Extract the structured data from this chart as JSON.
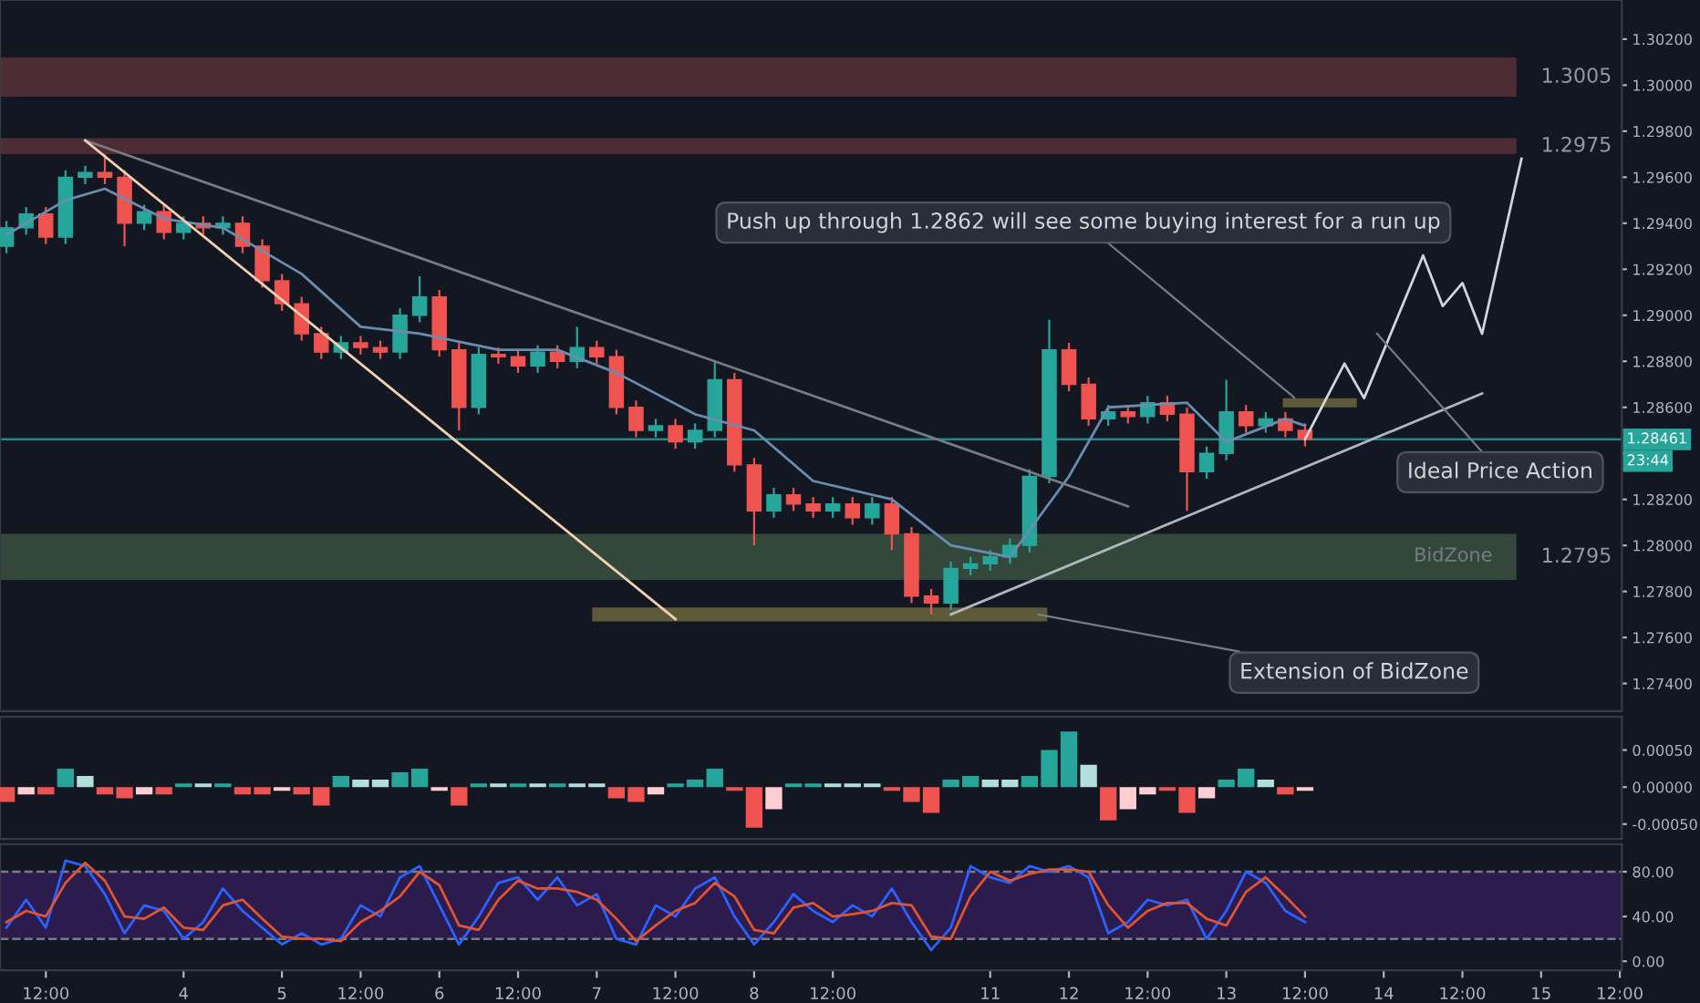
{
  "chart_data": [
    {
      "type": "candlestick",
      "categories": [
        null,
        null,
        null,
        null,
        null,
        null,
        null,
        null,
        null,
        null,
        null,
        null,
        null,
        null,
        null,
        null,
        null,
        null,
        null,
        null,
        null,
        null,
        null,
        null,
        null,
        null,
        null,
        null,
        null,
        null,
        null,
        null,
        null,
        null,
        null,
        null,
        null,
        null,
        null,
        null,
        null,
        null,
        null,
        null,
        null,
        null,
        null,
        null,
        null,
        null,
        null,
        null,
        null,
        null,
        null,
        null,
        null,
        null,
        null,
        null,
        null,
        null,
        null,
        null,
        null,
        null,
        null,
        null,
        null,
        null,
        null,
        null,
        null,
        null,
        null,
        null,
        null,
        null,
        null,
        null,
        null,
        null,
        null
      ],
      "ohlc": [
        [
          1.293,
          1.2941,
          1.2927,
          1.2938
        ],
        [
          1.2938,
          1.2947,
          1.2935,
          1.2944
        ],
        [
          1.2944,
          1.2947,
          1.2931,
          1.2934
        ],
        [
          1.2934,
          1.2963,
          1.2931,
          1.296
        ],
        [
          1.296,
          1.2965,
          1.2957,
          1.2962
        ],
        [
          1.2962,
          1.297,
          1.2957,
          1.296
        ],
        [
          1.296,
          1.2963,
          1.293,
          1.294
        ],
        [
          1.294,
          1.2948,
          1.2937,
          1.2945
        ],
        [
          1.2945,
          1.2948,
          1.2933,
          1.2936
        ],
        [
          1.2936,
          1.2943,
          1.2933,
          1.294
        ],
        [
          1.294,
          1.2943,
          1.2935,
          1.2938
        ],
        [
          1.2938,
          1.2943,
          1.2935,
          1.294
        ],
        [
          1.294,
          1.2943,
          1.2927,
          1.293
        ],
        [
          1.293,
          1.2933,
          1.2912,
          1.2915
        ],
        [
          1.2915,
          1.2918,
          1.2902,
          1.2905
        ],
        [
          1.2905,
          1.2908,
          1.2889,
          1.2892
        ],
        [
          1.2892,
          1.2895,
          1.2881,
          1.2884
        ],
        [
          1.2884,
          1.2891,
          1.2881,
          1.2888
        ],
        [
          1.2888,
          1.2891,
          1.2883,
          1.2886
        ],
        [
          1.2886,
          1.2889,
          1.2881,
          1.2884
        ],
        [
          1.2884,
          1.2903,
          1.2881,
          1.29
        ],
        [
          1.29,
          1.2917,
          1.2897,
          1.2908
        ],
        [
          1.2908,
          1.2911,
          1.2882,
          1.2885
        ],
        [
          1.2885,
          1.2888,
          1.285,
          1.286
        ],
        [
          1.286,
          1.2886,
          1.2857,
          1.2883
        ],
        [
          1.2883,
          1.2886,
          1.2879,
          1.2882
        ],
        [
          1.2882,
          1.2885,
          1.2875,
          1.2878
        ],
        [
          1.2878,
          1.2887,
          1.2875,
          1.2884
        ],
        [
          1.2884,
          1.2887,
          1.2877,
          1.288
        ],
        [
          1.288,
          1.2895,
          1.2877,
          1.2886
        ],
        [
          1.2886,
          1.2889,
          1.2879,
          1.2882
        ],
        [
          1.2882,
          1.2885,
          1.2857,
          1.286
        ],
        [
          1.286,
          1.2863,
          1.2847,
          1.285
        ],
        [
          1.285,
          1.2855,
          1.2847,
          1.2852
        ],
        [
          1.2852,
          1.2855,
          1.2842,
          1.2845
        ],
        [
          1.2845,
          1.2853,
          1.2842,
          1.285
        ],
        [
          1.285,
          1.288,
          1.2847,
          1.2872
        ],
        [
          1.2872,
          1.2875,
          1.2832,
          1.2835
        ],
        [
          1.2835,
          1.2838,
          1.28,
          1.2815
        ],
        [
          1.2815,
          1.2825,
          1.2812,
          1.2822
        ],
        [
          1.2822,
          1.2825,
          1.2815,
          1.2818
        ],
        [
          1.2818,
          1.2821,
          1.2812,
          1.2815
        ],
        [
          1.2815,
          1.2821,
          1.2812,
          1.2818
        ],
        [
          1.2818,
          1.2821,
          1.2809,
          1.2812
        ],
        [
          1.2812,
          1.2821,
          1.2809,
          1.2818
        ],
        [
          1.2818,
          1.2821,
          1.2798,
          1.2805
        ],
        [
          1.2805,
          1.2808,
          1.2775,
          1.2778
        ],
        [
          1.2778,
          1.2781,
          1.277,
          1.2775
        ],
        [
          1.2775,
          1.2793,
          1.2772,
          1.279
        ],
        [
          1.279,
          1.2795,
          1.2787,
          1.2792
        ],
        [
          1.2792,
          1.2798,
          1.2789,
          1.2795
        ],
        [
          1.2795,
          1.2803,
          1.2792,
          1.28
        ],
        [
          1.28,
          1.2833,
          1.2797,
          1.283
        ],
        [
          1.283,
          1.2898,
          1.2827,
          1.2885
        ],
        [
          1.2885,
          1.2888,
          1.2867,
          1.287
        ],
        [
          1.287,
          1.2873,
          1.2852,
          1.2855
        ],
        [
          1.2855,
          1.2861,
          1.2852,
          1.2858
        ],
        [
          1.2858,
          1.2861,
          1.2853,
          1.2856
        ],
        [
          1.2856,
          1.2865,
          1.2853,
          1.2862
        ],
        [
          1.2862,
          1.2865,
          1.2854,
          1.2857
        ],
        [
          1.2857,
          1.286,
          1.2815,
          1.2832
        ],
        [
          1.2832,
          1.2843,
          1.2829,
          1.284
        ],
        [
          1.284,
          1.2872,
          1.2837,
          1.2858
        ],
        [
          1.2858,
          1.2861,
          1.2849,
          1.2852
        ],
        [
          1.2852,
          1.2858,
          1.2849,
          1.2855
        ],
        [
          1.2855,
          1.2858,
          1.2847,
          1.285
        ],
        [
          1.285,
          1.2853,
          1.2843,
          1.28461
        ],
        null,
        null,
        null,
        null,
        null,
        null,
        null,
        null,
        null,
        null,
        null,
        null,
        null,
        null,
        null,
        null
      ],
      "colors": [
        "#26a69a",
        "#26a69a",
        "#ef5350",
        "#26a69a",
        "#26a69a",
        "#ef5350",
        "#ef5350",
        "#26a69a",
        "#ef5350",
        "#26a69a",
        "#ef5350",
        "#26a69a",
        "#ef5350",
        "#ef5350",
        "#ef5350",
        "#ef5350",
        "#ef5350",
        "#26a69a",
        "#ef5350",
        "#ef5350",
        "#26a69a",
        "#26a69a",
        "#ef5350",
        "#ef5350",
        "#26a69a",
        "#ef5350",
        "#ef5350",
        "#26a69a",
        "#ef5350",
        "#26a69a",
        "#ef5350",
        "#ef5350",
        "#ef5350",
        "#26a69a",
        "#ef5350",
        "#26a69a",
        "#26a69a",
        "#ef5350",
        "#ef5350",
        "#26a69a",
        "#ef5350",
        "#ef5350",
        "#26a69a",
        "#ef5350",
        "#26a69a",
        "#ef5350",
        "#ef5350",
        "#ef5350",
        "#26a69a",
        "#26a69a",
        "#26a69a",
        "#26a69a",
        "#26a69a",
        "#26a69a",
        "#ef5350",
        "#ef5350",
        "#26a69a",
        "#ef5350",
        "#26a69a",
        "#ef5350",
        "#ef5350",
        "#26a69a",
        "#26a69a",
        "#ef5350",
        "#26a69a",
        "#ef5350",
        "#ef5350",
        null,
        null,
        null,
        null,
        null,
        null,
        null,
        null,
        null,
        null,
        null,
        null,
        null,
        null,
        null,
        null
      ],
      "series": [
        {
          "type": "line",
          "color": "#6a8caf",
          "values": [
            1.2935,
            null,
            null,
            1.295,
            null,
            1.2955,
            null,
            null,
            1.2942,
            null,
            null,
            1.2938,
            null,
            null,
            null,
            1.2918,
            null,
            null,
            1.2895,
            null,
            null,
            1.2892,
            null,
            null,
            null,
            1.2885,
            null,
            null,
            1.2885,
            null,
            null,
            1.2875,
            null,
            null,
            null,
            1.2857,
            null,
            null,
            1.285,
            null,
            null,
            1.2828,
            null,
            null,
            null,
            1.282,
            null,
            null,
            1.28,
            null,
            null,
            1.2795,
            null,
            null,
            1.283,
            null,
            1.286,
            null,
            null,
            null,
            1.2862,
            null,
            1.2845,
            null,
            null,
            1.2855,
            1.2852,
            null,
            null,
            null,
            null,
            null,
            null,
            null,
            null,
            null,
            null,
            null,
            null,
            null,
            null,
            null,
            null
          ]
        },
        {
          "type": "line",
          "color": "#787b86",
          "values": [
            null,
            null,
            null,
            null,
            1.2976,
            null,
            null,
            null,
            null,
            null,
            null,
            null,
            null,
            null,
            null,
            null,
            null,
            null,
            null,
            null,
            null,
            null,
            null,
            null,
            null,
            null,
            null,
            null,
            null,
            null,
            null,
            null,
            null,
            null,
            null,
            null,
            null,
            null,
            null,
            null,
            null,
            null,
            null,
            null,
            null,
            null,
            null,
            null,
            null,
            null,
            null,
            null,
            null,
            null,
            null,
            null,
            null,
            1.2817,
            null,
            null,
            null,
            null,
            null,
            null,
            null,
            null,
            null,
            null,
            null,
            null,
            null,
            null,
            null,
            null,
            null,
            null,
            null,
            null,
            null,
            null,
            null,
            null,
            null
          ]
        },
        {
          "type": "line",
          "color": "#f0d0b0",
          "values": [
            null,
            null,
            null,
            null,
            1.2976,
            null,
            null,
            null,
            null,
            null,
            null,
            null,
            null,
            null,
            null,
            null,
            null,
            null,
            null,
            null,
            null,
            null,
            null,
            null,
            null,
            null,
            null,
            null,
            null,
            null,
            null,
            null,
            null,
            null,
            1.2768,
            null,
            null,
            null,
            null,
            null,
            null,
            null,
            null,
            null,
            null,
            null,
            null,
            null,
            null,
            null,
            null,
            null,
            null,
            null,
            null,
            null,
            null,
            null,
            null,
            null,
            null,
            null,
            null,
            null,
            null,
            null,
            null,
            null,
            null,
            null,
            null,
            null,
            null,
            null,
            null,
            null,
            null,
            null,
            null,
            null,
            null,
            null,
            null
          ]
        },
        {
          "type": "line",
          "color": "#b2b5be",
          "values": [
            null,
            null,
            null,
            null,
            null,
            null,
            null,
            null,
            null,
            null,
            null,
            null,
            null,
            null,
            null,
            null,
            null,
            null,
            null,
            null,
            null,
            null,
            null,
            null,
            null,
            null,
            null,
            null,
            null,
            null,
            null,
            null,
            null,
            null,
            null,
            null,
            null,
            null,
            null,
            null,
            null,
            null,
            null,
            null,
            null,
            null,
            null,
            null,
            1.277,
            null,
            null,
            null,
            null,
            null,
            null,
            null,
            null,
            null,
            null,
            null,
            null,
            null,
            null,
            null,
            null,
            null,
            null,
            null,
            null,
            null,
            null,
            null,
            null,
            null,
            null,
            1.2866,
            null,
            null,
            null,
            null,
            null,
            null,
            null
          ]
        },
        {
          "type": "line",
          "color": "#d1d4dc",
          "values": [
            null,
            null,
            null,
            null,
            null,
            null,
            null,
            null,
            null,
            null,
            null,
            null,
            null,
            null,
            null,
            null,
            null,
            null,
            null,
            null,
            null,
            null,
            null,
            null,
            null,
            null,
            null,
            null,
            null,
            null,
            null,
            null,
            null,
            null,
            null,
            null,
            null,
            null,
            null,
            null,
            null,
            null,
            null,
            null,
            null,
            null,
            null,
            null,
            null,
            null,
            null,
            null,
            null,
            null,
            null,
            null,
            null,
            null,
            null,
            null,
            null,
            null,
            null,
            null,
            null,
            null,
            1.28461,
            null,
            1.2879,
            1.2864,
            null,
            null,
            1.2926,
            1.2904,
            1.2914,
            1.2892,
            null,
            1.2968,
            null,
            null,
            null,
            null,
            null
          ]
        }
      ],
      "bands": [
        {
          "axis": "y",
          "from": 1.2995,
          "to": 1.3012,
          "label": "1.3005",
          "color": "#4e2c34"
        },
        {
          "axis": "y",
          "from": 1.297,
          "to": 1.2977,
          "label": "1.2975",
          "color": "#4e2c34"
        },
        {
          "axis": "y",
          "from": 1.2785,
          "to": 1.2805,
          "label": "1.2795",
          "color": "#33483b"
        }
      ],
      "ref_lines": [
        {
          "axis": "y",
          "value": 1.28461,
          "label": "1.28461",
          "color": "#1e8a8a"
        }
      ],
      "annotations": [
        "Push up through 1.2862 will see some buying interest for a run up",
        "Ideal Price Action",
        "Extension of BidZone",
        "BidZone",
        "23:44"
      ],
      "ylim": [
        1.2728,
        1.3037
      ],
      "yticks": [
        {
          "value": 1.274,
          "label": "1.27400"
        },
        {
          "value": 1.276,
          "label": "1.27600"
        },
        {
          "value": 1.278,
          "label": "1.27800"
        },
        {
          "value": 1.28,
          "label": "1.28000"
        },
        {
          "value": 1.282,
          "label": "1.28200"
        },
        {
          "value": 1.284,
          "label": null
        },
        {
          "value": 1.286,
          "label": "1.28600"
        },
        {
          "value": 1.288,
          "label": "1.28800"
        },
        {
          "value": 1.29,
          "label": "1.29000"
        },
        {
          "value": 1.292,
          "label": "1.29200"
        },
        {
          "value": 1.294,
          "label": "1.29400"
        },
        {
          "value": 1.296,
          "label": "1.29600"
        },
        {
          "value": 1.298,
          "label": "1.29800"
        },
        {
          "value": 1.3,
          "label": "1.30000"
        },
        {
          "value": 1.302,
          "label": "1.30200"
        }
      ],
      "tick_labels": "y"
    },
    {
      "type": "bar",
      "categories": [
        null,
        null,
        null,
        null,
        null,
        null,
        null,
        null,
        null,
        null,
        null,
        null,
        null,
        null,
        null,
        null,
        null,
        null,
        null,
        null,
        null,
        null,
        null,
        null,
        null,
        null,
        null,
        null,
        null,
        null,
        null,
        null,
        null,
        null,
        null,
        null,
        null,
        null,
        null,
        null,
        null,
        null,
        null,
        null,
        null,
        null,
        null,
        null,
        null,
        null,
        null,
        null,
        null,
        null,
        null,
        null,
        null,
        null,
        null,
        null,
        null,
        null,
        null,
        null,
        null,
        null,
        null,
        null,
        null,
        null,
        null,
        null,
        null,
        null,
        null,
        null,
        null,
        null,
        null,
        null,
        null,
        null,
        null
      ],
      "values": [
        -0.0002,
        -0.0001,
        -0.0001,
        0.00025,
        0.00015,
        -0.0001,
        -0.00015,
        -0.0001,
        -0.0001,
        5e-05,
        5e-05,
        5e-05,
        -0.0001,
        -0.0001,
        -5e-05,
        -0.0001,
        -0.00025,
        0.00015,
        0.0001,
        0.0001,
        0.0002,
        0.00025,
        -5e-05,
        -0.00025,
        5e-05,
        5e-05,
        5e-05,
        5e-05,
        5e-05,
        5e-05,
        5e-05,
        -0.00015,
        -0.0002,
        -0.0001,
        5e-05,
        0.0001,
        0.00025,
        -5e-05,
        -0.00055,
        -0.0003,
        5e-05,
        5e-05,
        5e-05,
        5e-05,
        5e-05,
        -5e-05,
        -0.0002,
        -0.00035,
        0.0001,
        0.00015,
        0.0001,
        0.0001,
        0.00015,
        0.0005,
        0.00075,
        0.0003,
        -0.00045,
        -0.0003,
        -0.0001,
        -5e-05,
        -0.00035,
        -0.00015,
        0.0001,
        0.00025,
        0.0001,
        -0.0001,
        -5e-05,
        null,
        null,
        null,
        null,
        null,
        null,
        null,
        null,
        null,
        null,
        null,
        null,
        null,
        null,
        null,
        null
      ],
      "colors": [
        "#ef5350",
        "#ffcdd2",
        "#ef5350",
        "#26a69a",
        "#b2dfdb",
        "#ef5350",
        "#ef5350",
        "#ffcdd2",
        "#ef5350",
        "#26a69a",
        "#b2dfdb",
        "#26a69a",
        "#ef5350",
        "#ef5350",
        "#ffcdd2",
        "#ef5350",
        "#ef5350",
        "#26a69a",
        "#b2dfdb",
        "#b2dfdb",
        "#26a69a",
        "#26a69a",
        "#ffcdd2",
        "#ef5350",
        "#26a69a",
        "#b2dfdb",
        "#26a69a",
        "#b2dfdb",
        "#26a69a",
        "#b2dfdb",
        "#b2dfdb",
        "#ef5350",
        "#ef5350",
        "#ffcdd2",
        "#26a69a",
        "#26a69a",
        "#26a69a",
        "#ef5350",
        "#ef5350",
        "#ffcdd2",
        "#26a69a",
        "#26a69a",
        "#b2dfdb",
        "#b2dfdb",
        "#b2dfdb",
        "#ef5350",
        "#ef5350",
        "#ef5350",
        "#26a69a",
        "#26a69a",
        "#b2dfdb",
        "#b2dfdb",
        "#26a69a",
        "#26a69a",
        "#26a69a",
        "#b2dfdb",
        "#ef5350",
        "#ffcdd2",
        "#ffcdd2",
        "#ef5350",
        "#ef5350",
        "#ffcdd2",
        "#26a69a",
        "#26a69a",
        "#b2dfdb",
        "#ef5350",
        "#ffcdd2",
        null,
        null,
        null,
        null,
        null,
        null,
        null,
        null,
        null,
        null,
        null,
        null,
        null,
        null,
        null,
        null
      ],
      "ylim": [
        -0.0007,
        0.00095
      ],
      "yticks": [
        {
          "value": -0.0005,
          "label": "-0.00050"
        },
        {
          "value": 0,
          "label": "0.00000"
        },
        {
          "value": 0.0005,
          "label": "0.00050"
        }
      ],
      "tick_labels": "y"
    },
    {
      "type": "line",
      "categories": [
        null,
        null,
        "12:00",
        null,
        null,
        null,
        null,
        null,
        null,
        "4",
        null,
        null,
        null,
        null,
        "5",
        null,
        null,
        null,
        "12:00",
        null,
        null,
        null,
        "6",
        null,
        null,
        null,
        "12:00",
        null,
        null,
        null,
        "7",
        null,
        null,
        null,
        "12:00",
        null,
        null,
        null,
        "8",
        null,
        null,
        null,
        "12:00",
        null,
        null,
        null,
        null,
        null,
        null,
        null,
        "11",
        null,
        null,
        null,
        "12",
        null,
        null,
        null,
        "12:00",
        null,
        null,
        null,
        "13",
        null,
        null,
        null,
        "12:00",
        null,
        null,
        null,
        "14",
        null,
        null,
        null,
        "12:00",
        null,
        null,
        null,
        "15",
        null,
        null,
        null,
        "12:00"
      ],
      "series": [
        {
          "color": "#2962ff",
          "values": [
            30,
            55,
            30,
            90,
            85,
            60,
            25,
            50,
            45,
            20,
            35,
            65,
            45,
            30,
            15,
            25,
            15,
            20,
            50,
            40,
            75,
            85,
            50,
            15,
            40,
            70,
            75,
            55,
            75,
            50,
            60,
            20,
            15,
            50,
            40,
            65,
            75,
            40,
            15,
            35,
            60,
            45,
            35,
            50,
            40,
            65,
            35,
            10,
            30,
            85,
            75,
            70,
            85,
            80,
            85,
            75,
            25,
            35,
            55,
            50,
            55,
            20,
            45,
            80,
            70,
            45,
            35,
            null,
            null,
            null,
            null,
            null,
            null,
            null,
            null,
            null,
            null,
            null,
            null,
            null,
            null,
            null,
            null
          ]
        },
        {
          "color": "#e0542f",
          "values": [
            35,
            45,
            40,
            70,
            88,
            72,
            40,
            38,
            48,
            30,
            28,
            50,
            55,
            38,
            22,
            20,
            20,
            18,
            35,
            45,
            58,
            80,
            68,
            32,
            28,
            55,
            72,
            65,
            65,
            62,
            55,
            38,
            18,
            32,
            45,
            52,
            70,
            58,
            28,
            25,
            48,
            52,
            40,
            42,
            45,
            52,
            50,
            22,
            20,
            58,
            80,
            72,
            78,
            82,
            82,
            80,
            50,
            30,
            45,
            52,
            52,
            38,
            32,
            62,
            75,
            58,
            40,
            null,
            null,
            null,
            null,
            null,
            null,
            null,
            null,
            null,
            null,
            null,
            null,
            null,
            null,
            null,
            null
          ]
        }
      ],
      "bands": [
        {
          "axis": "y",
          "from": 20,
          "to": 80,
          "color": "#2c1b4d"
        }
      ],
      "ref_lines": [
        {
          "axis": "y",
          "value": 80,
          "color": "#787b86",
          "line_style": "dashed"
        },
        {
          "axis": "y",
          "value": 20,
          "color": "#787b86",
          "line_style": "dashed"
        }
      ],
      "ylim": [
        -8,
        104.5
      ],
      "yticks": [
        {
          "value": 0,
          "label": "0.00"
        },
        {
          "value": 40,
          "label": "40.00"
        },
        {
          "value": 80,
          "label": "80.00"
        }
      ]
    }
  ]
}
